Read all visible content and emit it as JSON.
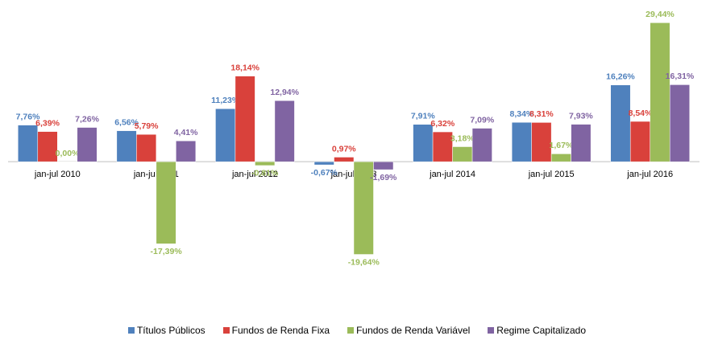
{
  "chart_data": {
    "type": "bar",
    "categories": [
      "jan-jul 2010",
      "jan-jul 2011",
      "jan-jul 2012",
      "jan-jul 2013",
      "jan-jul 2014",
      "jan-jul 2015",
      "jan-jul 2016"
    ],
    "series": [
      {
        "name": "Títulos Públicos",
        "color": "#4f81bd",
        "values": [
          7.76,
          6.56,
          11.23,
          -0.67,
          7.91,
          8.34,
          16.26
        ],
        "value_labels": [
          "7,76%",
          "6,56%",
          "11,23%",
          "-0,67%",
          "7,91%",
          "8,34%",
          "16,26%"
        ]
      },
      {
        "name": "Fundos de Renda Fixa",
        "color": "#d9413b",
        "values": [
          6.39,
          5.79,
          18.14,
          0.97,
          6.32,
          8.31,
          8.54
        ],
        "value_labels": [
          "6,39%",
          "5,79%",
          "18,14%",
          "0,97%",
          "6,32%",
          "8,31%",
          "8,54%"
        ]
      },
      {
        "name": "Fundos de Renda Variável",
        "color": "#9bbb59",
        "values": [
          0.0,
          -17.39,
          -0.81,
          -19.64,
          3.18,
          1.67,
          29.44
        ],
        "value_labels": [
          "0,00%",
          "-17,39%",
          "-0,81%",
          "-19,64%",
          "3,18%",
          "1,67%",
          "29,44%"
        ]
      },
      {
        "name": "Regime Capitalizado",
        "color": "#8064a2",
        "values": [
          7.26,
          4.41,
          12.94,
          -1.69,
          7.09,
          7.93,
          16.31
        ],
        "value_labels": [
          "7,26%",
          "4,41%",
          "12,94%",
          "-1,69%",
          "7,09%",
          "7,93%",
          "16,31%"
        ]
      }
    ],
    "ylim": [
      -25,
      30
    ],
    "legend": "bottom"
  }
}
